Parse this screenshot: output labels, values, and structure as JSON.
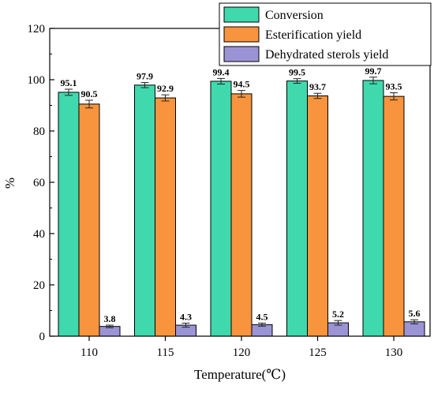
{
  "chart_data": {
    "type": "bar",
    "title": "",
    "xlabel": "Temperature(℃)",
    "ylabel": "%",
    "categories": [
      "110",
      "115",
      "120",
      "125",
      "130"
    ],
    "ylim": [
      0,
      120
    ],
    "yticks": [
      0,
      20,
      40,
      60,
      80,
      100,
      120
    ],
    "grid": false,
    "legend_position": "top-right",
    "series": [
      {
        "name": "Conversion",
        "color": "#3fd9ad",
        "values": [
          95.1,
          97.9,
          99.4,
          99.5,
          99.7
        ],
        "errors": [
          1.2,
          1.0,
          1.1,
          0.9,
          1.3
        ]
      },
      {
        "name": "Esterification yield",
        "color": "#f7943d",
        "values": [
          90.5,
          92.9,
          94.5,
          93.7,
          93.5
        ],
        "errors": [
          1.5,
          1.2,
          1.3,
          1.0,
          1.4
        ]
      },
      {
        "name": "Dehydrated sterols yield",
        "color": "#9b94d4",
        "values": [
          3.8,
          4.3,
          4.5,
          5.2,
          5.6
        ],
        "errors": [
          0.5,
          0.8,
          0.6,
          0.9,
          0.8
        ]
      }
    ],
    "data_labels": [
      [
        "95.1",
        "97.9",
        "99.4",
        "99.5",
        "99.7"
      ],
      [
        "90.5",
        "92.9",
        "94.5",
        "93.7",
        "93.5"
      ],
      [
        "3.8",
        "4.3",
        "4.5",
        "5.2",
        "5.6"
      ]
    ]
  }
}
